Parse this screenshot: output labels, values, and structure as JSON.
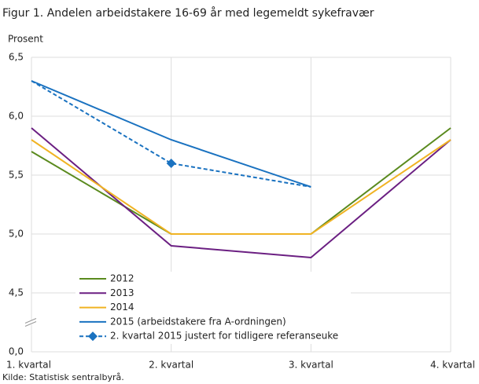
{
  "chart_data": {
    "type": "line",
    "title": "Figur 1. Andelen arbeidstakere 16-69 år med legemeldt sykefravær",
    "y_label": "Prosent",
    "source": "Kilde: Statistisk sentralbyrå.",
    "categories": [
      "1. kvartal",
      "2. kvartal",
      "3. kvartal",
      "4. kvartal"
    ],
    "series": [
      {
        "name": "2012",
        "color": "#5a8a1e",
        "values": [
          5.7,
          5.0,
          5.0,
          5.9
        ]
      },
      {
        "name": "2013",
        "color": "#6b1f82",
        "values": [
          5.9,
          4.9,
          4.8,
          5.8
        ]
      },
      {
        "name": "2014",
        "color": "#f0b323",
        "values": [
          5.8,
          5.0,
          5.0,
          5.8
        ]
      },
      {
        "name": "2015 (arbeidstakere fra A-ordningen)",
        "color": "#1a72c0",
        "values": [
          6.3,
          5.8,
          5.4,
          null
        ]
      },
      {
        "name": "2. kvartal 2015 justert for tidligere referanseuke",
        "color": "#1a72c0",
        "dashed": true,
        "marker": "diamond",
        "markers": [
          false,
          true,
          false,
          false
        ],
        "values": [
          6.3,
          5.6,
          5.4,
          null
        ]
      }
    ],
    "ylim": [
      0,
      6.5
    ],
    "broken_axis": true,
    "yticks": [
      {
        "value": 0,
        "label": "0,0"
      },
      {
        "value": 4.5,
        "label": "4,5"
      },
      {
        "value": 5.0,
        "label": "5,0"
      },
      {
        "value": 5.5,
        "label": "5,5"
      },
      {
        "value": 6.0,
        "label": "6,0"
      },
      {
        "value": 6.5,
        "label": "6,5"
      }
    ],
    "grid": true
  }
}
